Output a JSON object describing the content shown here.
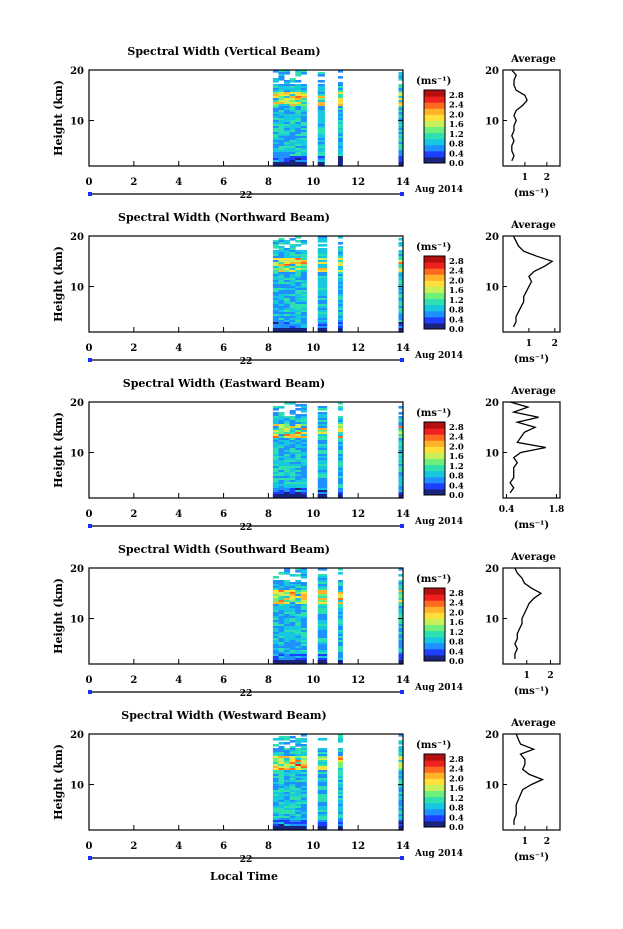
{
  "figure": {
    "xlabel": "Local Time",
    "date_right": "Aug 2014",
    "day_label": "22",
    "cbar_unit": "(ms⁻¹)",
    "avg_unit": "(ms⁻¹)",
    "avg_title": "Average",
    "ylabel": "Height (km)",
    "colors": {
      "scale": [
        "#1a237e",
        "#1e3fff",
        "#1e90ff",
        "#17c7e0",
        "#2ee0b0",
        "#6ff07a",
        "#c8f05a",
        "#ffe03a",
        "#ffb22a",
        "#ff6a1f",
        "#ef2020",
        "#b41010"
      ],
      "axis": "#000000",
      "day_bar": "#1a2cff"
    }
  },
  "chart_data": [
    {
      "type": "heatmap",
      "title": "Spectral Width (Vertical Beam)",
      "x_ticks": [
        "0",
        "2",
        "4",
        "6",
        "8",
        "10",
        "12",
        "14"
      ],
      "xlim": [
        0,
        14
      ],
      "y_ticks": [
        "20",
        "10"
      ],
      "ylim": [
        1,
        20
      ],
      "cbar_ticks": [
        "2.8",
        "2.4",
        "2.0",
        "1.6",
        "1.2",
        "0.8",
        "0.4",
        "0.0"
      ],
      "cbar_range": [
        0,
        3.0
      ],
      "data_segments_hours": [
        [
          8.2,
          9.7
        ],
        [
          10.2,
          10.5
        ],
        [
          11.1,
          11.3
        ],
        [
          13.8,
          14.0
        ]
      ],
      "average_profile": {
        "x_ticks": [
          "1",
          "2"
        ],
        "xlim": [
          0,
          2.6
        ],
        "y_ticks": [
          "20",
          "10"
        ],
        "heights_km": [
          2,
          3,
          4,
          5,
          6,
          7,
          8,
          9,
          10,
          11,
          12,
          13,
          14,
          15,
          16,
          17,
          18,
          19,
          20
        ],
        "values": [
          0.4,
          0.5,
          0.4,
          0.4,
          0.5,
          0.4,
          0.5,
          0.5,
          0.6,
          0.5,
          0.6,
          0.9,
          1.1,
          1.0,
          0.6,
          0.5,
          0.5,
          0.6,
          0.4
        ]
      }
    },
    {
      "type": "heatmap",
      "title": "Spectral Width (Northward Beam)",
      "x_ticks": [
        "0",
        "2",
        "4",
        "6",
        "8",
        "10",
        "12",
        "14"
      ],
      "xlim": [
        0,
        14
      ],
      "y_ticks": [
        "20",
        "10"
      ],
      "ylim": [
        1,
        20
      ],
      "cbar_ticks": [
        "2.8",
        "2.4",
        "2.0",
        "1.6",
        "1.2",
        "0.8",
        "0.4",
        "0.0"
      ],
      "cbar_range": [
        0,
        3.0
      ],
      "data_segments_hours": [
        [
          8.2,
          9.7
        ],
        [
          10.2,
          10.6
        ],
        [
          11.1,
          11.3
        ],
        [
          13.8,
          14.0
        ]
      ],
      "average_profile": {
        "x_ticks": [
          "1",
          "2"
        ],
        "xlim": [
          0,
          2.2
        ],
        "y_ticks": [
          "20",
          "10"
        ],
        "heights_km": [
          2,
          3,
          4,
          5,
          6,
          7,
          8,
          9,
          10,
          11,
          12,
          13,
          14,
          15,
          16,
          17,
          18,
          19,
          20
        ],
        "values": [
          0.4,
          0.5,
          0.5,
          0.6,
          0.7,
          0.8,
          0.8,
          0.9,
          1.0,
          1.1,
          1.0,
          1.2,
          1.6,
          1.9,
          1.3,
          0.8,
          0.6,
          0.5,
          0.4
        ]
      }
    },
    {
      "type": "heatmap",
      "title": "Spectral Width (Eastward Beam)",
      "x_ticks": [
        "0",
        "2",
        "4",
        "6",
        "8",
        "10",
        "12",
        "14"
      ],
      "xlim": [
        0,
        14
      ],
      "y_ticks": [
        "20",
        "10"
      ],
      "ylim": [
        1,
        20
      ],
      "cbar_ticks": [
        "2.8",
        "2.4",
        "2.0",
        "1.6",
        "1.2",
        "0.8",
        "0.4",
        "0.0"
      ],
      "cbar_range": [
        0,
        3.0
      ],
      "data_segments_hours": [
        [
          8.2,
          9.7
        ],
        [
          10.2,
          10.6
        ],
        [
          11.1,
          11.3
        ],
        [
          13.8,
          14.0
        ]
      ],
      "average_profile": {
        "x_ticks": [
          "0.4",
          "1.8"
        ],
        "xlim": [
          0.3,
          1.9
        ],
        "y_ticks": [
          "20",
          "10"
        ],
        "heights_km": [
          2,
          3,
          4,
          5,
          6,
          7,
          8,
          9,
          10,
          11,
          12,
          13,
          14,
          15,
          16,
          17,
          18,
          19,
          20
        ],
        "values": [
          0.5,
          0.6,
          0.5,
          0.6,
          0.6,
          0.6,
          0.7,
          0.6,
          0.8,
          1.5,
          0.7,
          0.8,
          0.9,
          1.2,
          0.7,
          1.3,
          0.6,
          1.0,
          0.5
        ]
      }
    },
    {
      "type": "heatmap",
      "title": "Spectral Width (Southward Beam)",
      "x_ticks": [
        "0",
        "2",
        "4",
        "6",
        "8",
        "10",
        "12",
        "14"
      ],
      "xlim": [
        0,
        14
      ],
      "y_ticks": [
        "20",
        "10"
      ],
      "ylim": [
        1,
        20
      ],
      "cbar_ticks": [
        "2.8",
        "2.4",
        "2.0",
        "1.6",
        "1.2",
        "0.8",
        "0.4",
        "0.0"
      ],
      "cbar_range": [
        0,
        3.0
      ],
      "data_segments_hours": [
        [
          8.2,
          9.7
        ],
        [
          10.2,
          10.6
        ],
        [
          11.1,
          11.3
        ],
        [
          13.8,
          14.0
        ]
      ],
      "average_profile": {
        "x_ticks": [
          "1",
          "2"
        ],
        "xlim": [
          0,
          2.4
        ],
        "y_ticks": [
          "20",
          "10"
        ],
        "heights_km": [
          2,
          3,
          4,
          5,
          6,
          7,
          8,
          9,
          10,
          11,
          12,
          13,
          14,
          15,
          16,
          17,
          18,
          19,
          20
        ],
        "values": [
          0.5,
          0.5,
          0.6,
          0.5,
          0.6,
          0.6,
          0.7,
          0.8,
          0.8,
          0.9,
          1.0,
          1.1,
          1.3,
          1.6,
          1.2,
          0.9,
          0.8,
          0.6,
          0.5
        ]
      }
    },
    {
      "type": "heatmap",
      "title": "Spectral Width (Westward Beam)",
      "x_ticks": [
        "0",
        "2",
        "4",
        "6",
        "8",
        "10",
        "12",
        "14"
      ],
      "xlim": [
        0,
        14
      ],
      "y_ticks": [
        "20",
        "10"
      ],
      "ylim": [
        1,
        20
      ],
      "cbar_ticks": [
        "2.8",
        "2.4",
        "2.0",
        "1.6",
        "1.2",
        "0.8",
        "0.4",
        "0.0"
      ],
      "cbar_range": [
        0,
        3.0
      ],
      "data_segments_hours": [
        [
          8.2,
          9.7
        ],
        [
          10.2,
          10.6
        ],
        [
          11.1,
          11.3
        ],
        [
          13.8,
          14.0
        ]
      ],
      "average_profile": {
        "x_ticks": [
          "1",
          "2"
        ],
        "xlim": [
          0,
          2.6
        ],
        "y_ticks": [
          "20",
          "10"
        ],
        "heights_km": [
          2,
          3,
          4,
          5,
          6,
          7,
          8,
          9,
          10,
          11,
          12,
          13,
          14,
          15,
          16,
          17,
          18,
          19,
          20
        ],
        "values": [
          0.5,
          0.5,
          0.6,
          0.6,
          0.6,
          0.7,
          0.8,
          0.9,
          1.3,
          1.8,
          1.2,
          0.9,
          1.0,
          1.0,
          0.8,
          1.4,
          0.8,
          0.7,
          0.6
        ]
      }
    }
  ]
}
